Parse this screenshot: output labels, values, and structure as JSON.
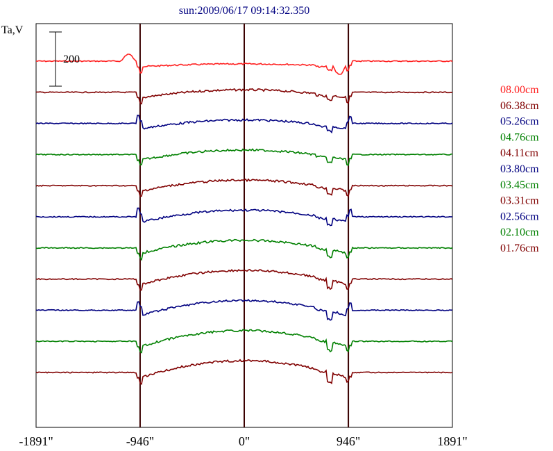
{
  "chart_data": {
    "type": "line",
    "title": "sun:2009/06/17 09:14:32.350",
    "ylabel": "Ta,V",
    "scale_bar_label": "200",
    "scale_bar_value": 200,
    "xlim": [
      -1891,
      1891
    ],
    "x_ticks": [
      {
        "value": -1891,
        "label": "-1891\""
      },
      {
        "value": -946,
        "label": "-946\""
      },
      {
        "value": 0,
        "label": "0\""
      },
      {
        "value": 946,
        "label": "946\""
      },
      {
        "value": 1891,
        "label": "1891\""
      }
    ],
    "vertical_lines": [
      -946,
      0,
      946
    ],
    "legend_position": "right",
    "series": [
      {
        "name": "08.00cm",
        "color": "#ff2020"
      },
      {
        "name": "06.38cm",
        "color": "#800000"
      },
      {
        "name": "05.26cm",
        "color": "#000080"
      },
      {
        "name": "04.76cm",
        "color": "#008000"
      },
      {
        "name": "04.11cm",
        "color": "#800000"
      },
      {
        "name": "03.80cm",
        "color": "#000080"
      },
      {
        "name": "03.45cm",
        "color": "#008000"
      },
      {
        "name": "03.31cm",
        "color": "#800000"
      },
      {
        "name": "02.56cm",
        "color": "#000080"
      },
      {
        "name": "02.10cm",
        "color": "#008000"
      },
      {
        "name": "01.76cm",
        "color": "#800000"
      }
    ]
  }
}
